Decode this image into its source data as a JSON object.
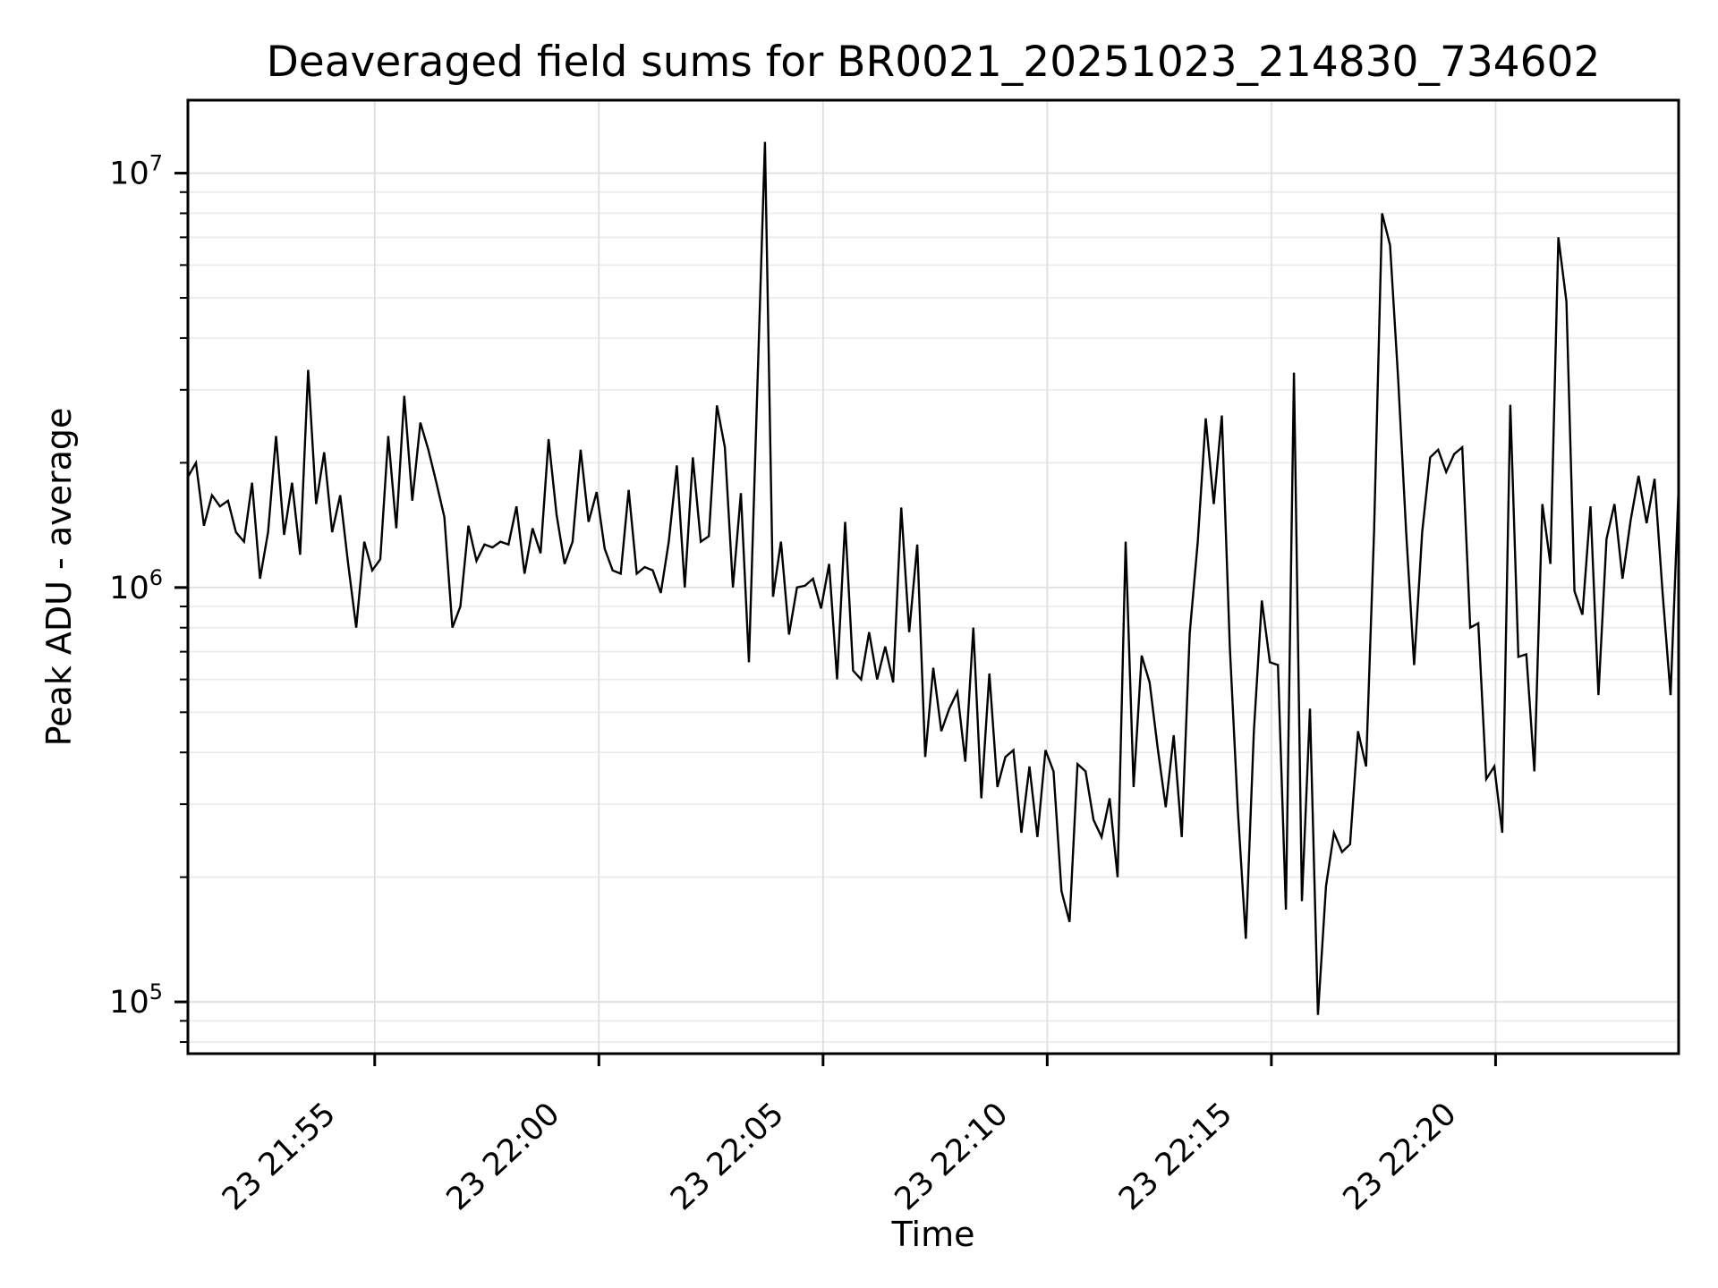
{
  "window": {
    "background": "#ffffff"
  },
  "chart_data": {
    "type": "line",
    "title": "Deaveraged field sums for BR0021_20251023_214830_734602",
    "xlabel": "Time",
    "ylabel": "Peak ADU - average",
    "y_scale": "log",
    "ylim": [
      75000,
      15000000
    ],
    "grid": "on",
    "legend": "none",
    "line_color": "#000000",
    "grid_major_color": "#e0e0e0",
    "grid_minor_color": "#ebebeb",
    "axis_color": "#000000",
    "x_start_time": "23 21:50:50",
    "x_end_time": "23 22:24:05",
    "x_range_seconds": 1995,
    "x_ticks": [
      {
        "label": "23 21:55",
        "offset_s": 250
      },
      {
        "label": "23 22:00",
        "offset_s": 550
      },
      {
        "label": "23 22:05",
        "offset_s": 850
      },
      {
        "label": "23 22:10",
        "offset_s": 1150
      },
      {
        "label": "23 22:15",
        "offset_s": 1450
      },
      {
        "label": "23 22:20",
        "offset_s": 1750
      }
    ],
    "y_ticks": [
      {
        "base": "10",
        "exp": "7",
        "value": 10000000
      },
      {
        "base": "10",
        "exp": "6",
        "value": 1000000
      },
      {
        "base": "10",
        "exp": "5",
        "value": 100000
      }
    ],
    "y_minor_ticks": [
      80000,
      90000,
      200000,
      300000,
      400000,
      500000,
      600000,
      700000,
      800000,
      900000,
      2000000,
      3000000,
      4000000,
      5000000,
      6000000,
      7000000,
      8000000,
      9000000
    ],
    "sample_interval_approx_s": 10.7,
    "values": [
      1850000,
      2000000,
      1410000,
      1670000,
      1570000,
      1620000,
      1360000,
      1290000,
      1790000,
      1050000,
      1360000,
      2320000,
      1340000,
      1790000,
      1200000,
      3350000,
      1590000,
      2120000,
      1360000,
      1670000,
      1140000,
      800000,
      1290000,
      1100000,
      1170000,
      2320000,
      1390000,
      2900000,
      1620000,
      2500000,
      2150000,
      1790000,
      1480000,
      800000,
      900000,
      1410000,
      1160000,
      1270000,
      1250000,
      1290000,
      1270000,
      1570000,
      1080000,
      1390000,
      1210000,
      2280000,
      1500000,
      1140000,
      1290000,
      2150000,
      1440000,
      1700000,
      1240000,
      1100000,
      1080000,
      1720000,
      1080000,
      1120000,
      1100000,
      970000,
      1290000,
      1970000,
      1000000,
      2060000,
      1290000,
      1330000,
      2750000,
      2180000,
      1000000,
      1690000,
      660000,
      2800000,
      11900000,
      950000,
      1290000,
      770000,
      1000000,
      1010000,
      1050000,
      890000,
      1140000,
      600000,
      1440000,
      630000,
      600000,
      780000,
      600000,
      720000,
      590000,
      1560000,
      780000,
      1270000,
      390000,
      640000,
      450000,
      510000,
      560000,
      380000,
      800000,
      310000,
      620000,
      330000,
      390000,
      405000,
      256000,
      370000,
      250000,
      405000,
      360000,
      185000,
      156000,
      375000,
      360000,
      275000,
      250000,
      310000,
      200000,
      1290000,
      330000,
      685000,
      590000,
      410000,
      295000,
      440000,
      250000,
      775000,
      1290000,
      2560000,
      1590000,
      2600000,
      720000,
      290000,
      142000,
      450000,
      930000,
      660000,
      650000,
      167000,
      3300000,
      175000,
      510000,
      93000,
      190000,
      256000,
      230000,
      240000,
      450000,
      370000,
      1360000,
      8000000,
      6700000,
      3200000,
      1360000,
      650000,
      1360000,
      2060000,
      2150000,
      1900000,
      2100000,
      2180000,
      800000,
      820000,
      345000,
      370000,
      256000,
      2760000,
      680000,
      690000,
      360000,
      1590000,
      1140000,
      7000000,
      4900000,
      980000,
      860000,
      1570000,
      550000,
      1310000,
      1590000,
      1050000,
      1450000,
      1860000,
      1430000,
      1830000,
      970000,
      550000,
      1750000
    ]
  }
}
